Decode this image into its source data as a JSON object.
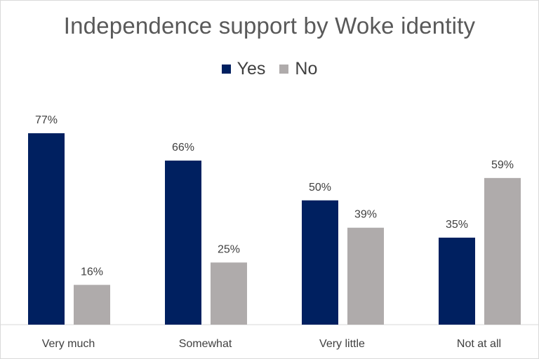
{
  "chart_data": {
    "type": "bar",
    "title": "Independence support by Woke identity",
    "categories": [
      "Very much",
      "Somewhat",
      "Very little",
      "Not at all"
    ],
    "series": [
      {
        "name": "Yes",
        "color": "#002060",
        "values": [
          77,
          66,
          50,
          35
        ]
      },
      {
        "name": "No",
        "color": "#AFABAB",
        "values": [
          16,
          25,
          39,
          59
        ]
      }
    ],
    "value_format": "percent",
    "ylim": [
      0,
      100
    ],
    "grid": false,
    "legend": "top"
  }
}
